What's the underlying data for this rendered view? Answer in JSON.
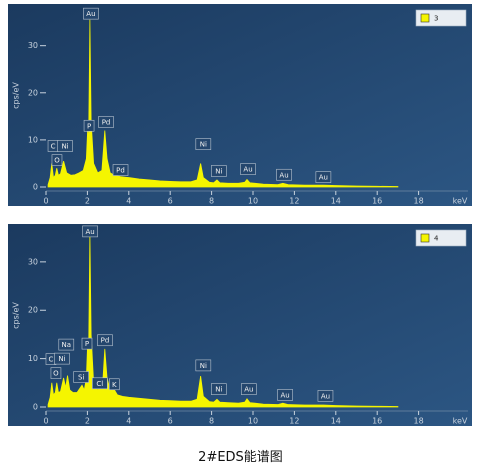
{
  "chart_data": [
    {
      "type": "area",
      "y_label": "cps/eV",
      "x_label": "keV",
      "xlim": [
        0,
        20
      ],
      "xticks": [
        0,
        2,
        4,
        6,
        8,
        10,
        12,
        14,
        16,
        18
      ],
      "ylim": [
        0,
        38
      ],
      "yticks": [
        0,
        10,
        20,
        30
      ],
      "legend": "upper right",
      "x": [
        0.1,
        0.2,
        0.28,
        0.36,
        0.45,
        0.52,
        0.6,
        0.7,
        0.85,
        1.0,
        1.2,
        1.4,
        1.6,
        1.8,
        1.95,
        2.01,
        2.06,
        2.12,
        2.18,
        2.3,
        2.5,
        2.7,
        2.84,
        2.95,
        3.1,
        3.3,
        3.6,
        4.0,
        4.5,
        5,
        5.5,
        6,
        6.5,
        7,
        7.3,
        7.47,
        7.6,
        7.9,
        8.1,
        8.26,
        8.4,
        8.8,
        9.3,
        9.6,
        9.71,
        9.85,
        10.5,
        11.2,
        11.44,
        11.7,
        12.5,
        13.4,
        14,
        15,
        16,
        17
      ],
      "series": [
        {
          "name": "3",
          "color": "#f5f500",
          "values": [
            0.5,
            2,
            5,
            2,
            2.5,
            4,
            2.5,
            2.8,
            5.5,
            3,
            2.5,
            2.6,
            3,
            3.5,
            6,
            12,
            10,
            35.5,
            14,
            5,
            3,
            3.5,
            12,
            6,
            3,
            2.5,
            2.2,
            2,
            1.7,
            1.5,
            1.3,
            1.2,
            1.1,
            1.1,
            1.5,
            5,
            2,
            1,
            0.9,
            1.5,
            0.9,
            0.8,
            0.8,
            1,
            1.6,
            0.9,
            0.6,
            0.5,
            0.8,
            0.5,
            0.4,
            0.4,
            0.3,
            0.2,
            0.15,
            0.1
          ]
        }
      ],
      "annotations": [
        {
          "text": "C",
          "x": 0.34,
          "y": 8.7
        },
        {
          "text": "O",
          "x": 0.53,
          "y": 5.7
        },
        {
          "text": "Ni",
          "x": 0.92,
          "y": 8.7
        },
        {
          "text": "P",
          "x": 2.08,
          "y": 13
        },
        {
          "text": "Au",
          "x": 2.17,
          "y": 36.8
        },
        {
          "text": "Pd",
          "x": 2.9,
          "y": 13.8
        },
        {
          "text": "Pd",
          "x": 3.6,
          "y": 3.6
        },
        {
          "text": "Ni",
          "x": 7.6,
          "y": 9.1
        },
        {
          "text": "Ni",
          "x": 8.35,
          "y": 3.4
        },
        {
          "text": "Au",
          "x": 9.76,
          "y": 3.8
        },
        {
          "text": "Au",
          "x": 11.5,
          "y": 2.6
        },
        {
          "text": "Au",
          "x": 13.4,
          "y": 2.1
        }
      ]
    },
    {
      "type": "area",
      "y_label": "cps/eV",
      "x_label": "keV",
      "xlim": [
        0,
        20
      ],
      "xticks": [
        0,
        2,
        4,
        6,
        8,
        10,
        12,
        14,
        16,
        18
      ],
      "ylim": [
        0,
        37
      ],
      "yticks": [
        0,
        10,
        20,
        30
      ],
      "legend": "upper right",
      "x": [
        0.1,
        0.2,
        0.28,
        0.36,
        0.45,
        0.52,
        0.6,
        0.7,
        0.85,
        0.95,
        1.04,
        1.15,
        1.3,
        1.5,
        1.74,
        1.85,
        1.95,
        2.01,
        2.06,
        2.12,
        2.18,
        2.3,
        2.5,
        2.62,
        2.72,
        2.84,
        2.95,
        3.1,
        3.31,
        3.45,
        3.7,
        4.0,
        4.5,
        5,
        5.5,
        6,
        6.5,
        7,
        7.3,
        7.47,
        7.6,
        7.9,
        8.1,
        8.26,
        8.4,
        8.8,
        9.3,
        9.6,
        9.71,
        9.85,
        10.5,
        11.2,
        11.44,
        11.7,
        12.5,
        13.4,
        14,
        15,
        16,
        17
      ],
      "series": [
        {
          "name": "4",
          "color": "#f5f500",
          "values": [
            0.5,
            2,
            5,
            2.5,
            3,
            5,
            3,
            3.2,
            6,
            4,
            6.5,
            3.5,
            3,
            3,
            4.5,
            3.5,
            6,
            13,
            11,
            36,
            15,
            5,
            3.5,
            4,
            3.5,
            12,
            6,
            3.5,
            3.5,
            2.5,
            2.2,
            2,
            1.8,
            1.6,
            1.4,
            1.3,
            1.2,
            1.2,
            1.6,
            6.4,
            2.2,
            1.1,
            1,
            1.6,
            1,
            0.9,
            0.8,
            1,
            1.7,
            0.9,
            0.6,
            0.5,
            0.8,
            0.5,
            0.4,
            0.4,
            0.3,
            0.2,
            0.15,
            0.1
          ]
        }
      ],
      "annotations": [
        {
          "text": "C",
          "x": 0.24,
          "y": 9.9
        },
        {
          "text": "O",
          "x": 0.48,
          "y": 7.0
        },
        {
          "text": "Na",
          "x": 0.98,
          "y": 12.9
        },
        {
          "text": "Ni",
          "x": 0.77,
          "y": 10
        },
        {
          "text": "Si",
          "x": 1.7,
          "y": 6.2
        },
        {
          "text": "P",
          "x": 1.98,
          "y": 13.1
        },
        {
          "text": "Au",
          "x": 2.13,
          "y": 36.3
        },
        {
          "text": "Pd",
          "x": 2.85,
          "y": 13.8
        },
        {
          "text": "Cl",
          "x": 2.6,
          "y": 4.9
        },
        {
          "text": "K",
          "x": 3.3,
          "y": 4.7
        },
        {
          "text": "Ni",
          "x": 7.6,
          "y": 8.6
        },
        {
          "text": "Ni",
          "x": 8.35,
          "y": 3.7
        },
        {
          "text": "Au",
          "x": 9.8,
          "y": 3.7
        },
        {
          "text": "Au",
          "x": 11.55,
          "y": 2.5
        },
        {
          "text": "Au",
          "x": 13.5,
          "y": 2.3
        }
      ]
    }
  ],
  "caption": "2#EDS能谱图"
}
